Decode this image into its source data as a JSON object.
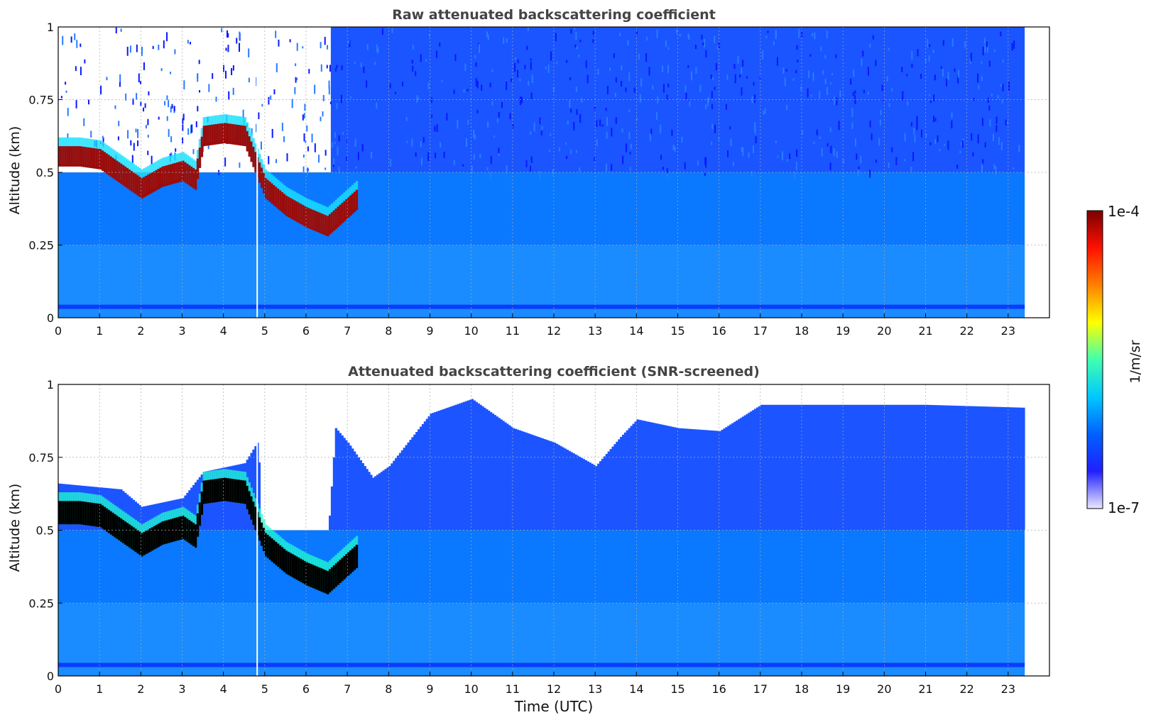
{
  "chart_data": [
    {
      "type": "heatmap",
      "title": "Raw attenuated backscattering coefficient",
      "xlabel": "",
      "ylabel": "Altitude (km)",
      "xlim": [
        0,
        24
      ],
      "ylim": [
        0,
        1
      ],
      "x_ticks": [
        "0",
        "1",
        "2",
        "3",
        "4",
        "5",
        "6",
        "7",
        "8",
        "9",
        "10",
        "11",
        "12",
        "13",
        "14",
        "15",
        "16",
        "17",
        "18",
        "19",
        "20",
        "21",
        "22",
        "23"
      ],
      "y_ticks": [
        "0",
        "0.25",
        "0.5",
        "0.75",
        "1"
      ],
      "data_end_hour": 23.4,
      "grid": true,
      "cloud_layer": [
        {
          "x": 0.0,
          "y": 0.55
        },
        {
          "x": 0.5,
          "y": 0.55
        },
        {
          "x": 1.0,
          "y": 0.54
        },
        {
          "x": 1.5,
          "y": 0.49
        },
        {
          "x": 2.0,
          "y": 0.44
        },
        {
          "x": 2.5,
          "y": 0.48
        },
        {
          "x": 3.0,
          "y": 0.5
        },
        {
          "x": 3.3,
          "y": 0.47
        },
        {
          "x": 3.5,
          "y": 0.62
        },
        {
          "x": 4.0,
          "y": 0.63
        },
        {
          "x": 4.5,
          "y": 0.62
        },
        {
          "x": 5.0,
          "y": 0.44
        },
        {
          "x": 5.5,
          "y": 0.38
        },
        {
          "x": 6.0,
          "y": 0.34
        },
        {
          "x": 6.5,
          "y": 0.31
        },
        {
          "x": 7.2,
          "y": 0.4
        }
      ]
    },
    {
      "type": "heatmap",
      "title": "Attenuated backscattering coefficient (SNR-screened)",
      "xlabel": "Time (UTC)",
      "ylabel": "Altitude (km)",
      "xlim": [
        0,
        24
      ],
      "ylim": [
        0,
        1
      ],
      "x_ticks": [
        "0",
        "1",
        "2",
        "3",
        "4",
        "5",
        "6",
        "7",
        "8",
        "9",
        "10",
        "11",
        "12",
        "13",
        "14",
        "15",
        "16",
        "17",
        "18",
        "19",
        "20",
        "21",
        "22",
        "23"
      ],
      "y_ticks": [
        "0",
        "0.25",
        "0.5",
        "0.75",
        "1"
      ],
      "data_end_hour": 23.4,
      "grid": true,
      "signal_top": [
        {
          "x": 0.0,
          "y": 0.66
        },
        {
          "x": 1.5,
          "y": 0.64
        },
        {
          "x": 2.0,
          "y": 0.58
        },
        {
          "x": 3.0,
          "y": 0.61
        },
        {
          "x": 3.5,
          "y": 0.7
        },
        {
          "x": 4.5,
          "y": 0.73
        },
        {
          "x": 4.8,
          "y": 0.8
        },
        {
          "x": 5.0,
          "y": 0.53
        },
        {
          "x": 6.0,
          "y": 0.48
        },
        {
          "x": 6.5,
          "y": 0.45
        },
        {
          "x": 6.7,
          "y": 0.85
        },
        {
          "x": 7.0,
          "y": 0.8
        },
        {
          "x": 7.6,
          "y": 0.68
        },
        {
          "x": 8.0,
          "y": 0.72
        },
        {
          "x": 9.0,
          "y": 0.9
        },
        {
          "x": 10.0,
          "y": 0.95
        },
        {
          "x": 11.0,
          "y": 0.85
        },
        {
          "x": 12.0,
          "y": 0.8
        },
        {
          "x": 13.0,
          "y": 0.72
        },
        {
          "x": 13.6,
          "y": 0.82
        },
        {
          "x": 14.0,
          "y": 0.88
        },
        {
          "x": 15.0,
          "y": 0.85
        },
        {
          "x": 16.0,
          "y": 0.84
        },
        {
          "x": 17.0,
          "y": 0.93
        },
        {
          "x": 19.0,
          "y": 0.93
        },
        {
          "x": 21.0,
          "y": 0.93
        },
        {
          "x": 23.4,
          "y": 0.92
        }
      ]
    }
  ],
  "colorbar": {
    "max_label": "1e-4",
    "min_label": "1e-7",
    "unit_label": "1/m/sr",
    "colors": [
      "#ebe8ff",
      "#2020ff",
      "#0060ff",
      "#00c8ff",
      "#40ffb0",
      "#ffff00",
      "#ff8000",
      "#ff1000",
      "#7a0000"
    ]
  }
}
